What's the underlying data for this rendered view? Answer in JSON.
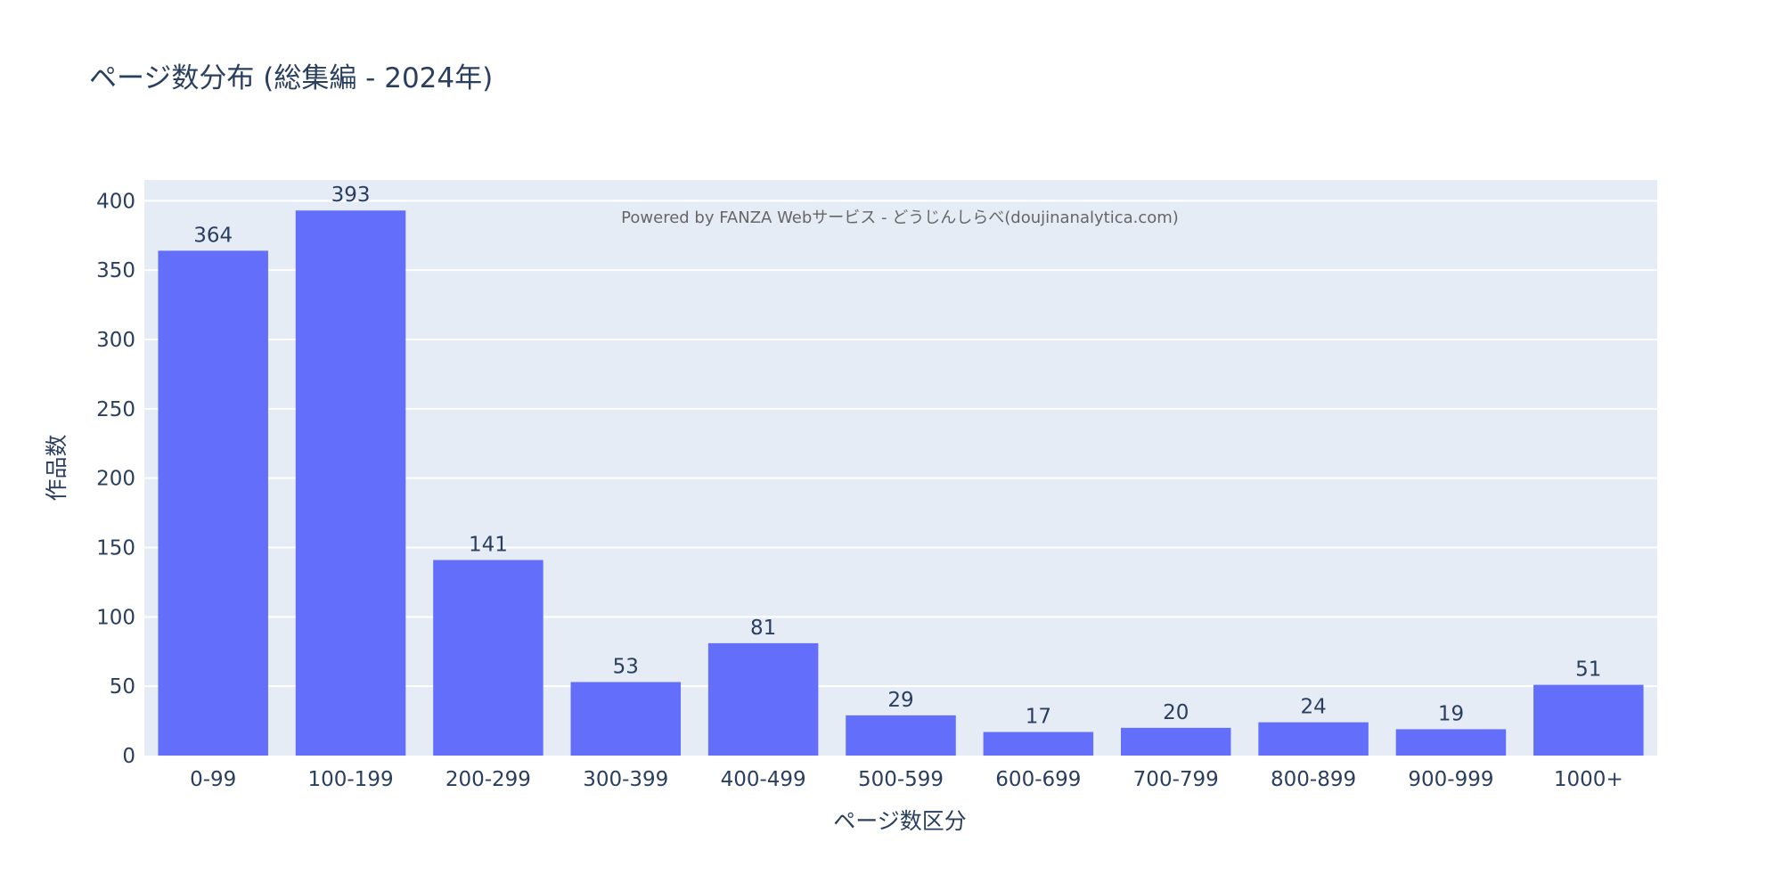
{
  "chart_data": {
    "type": "bar",
    "title": "ページ数分布 (総集編 - 2024年)",
    "xlabel": "ページ数区分",
    "ylabel": "作品数",
    "categories": [
      "0-99",
      "100-199",
      "200-299",
      "300-399",
      "400-499",
      "500-599",
      "600-699",
      "700-799",
      "800-899",
      "900-999",
      "1000+"
    ],
    "values": [
      364,
      393,
      141,
      53,
      81,
      29,
      17,
      20,
      24,
      19,
      51
    ],
    "ylim": [
      0,
      415
    ],
    "yticks": [
      0,
      50,
      100,
      150,
      200,
      250,
      300,
      350,
      400
    ],
    "grid": true,
    "annotation": "Powered by FANZA Webサービス - どうじんしらべ(doujinanalytica.com)",
    "colors": {
      "bar": "#636efa",
      "plot_bg": "#e5ecf6",
      "grid": "#ffffff",
      "text": "#2a3f5f",
      "annotation": "#666666"
    }
  }
}
